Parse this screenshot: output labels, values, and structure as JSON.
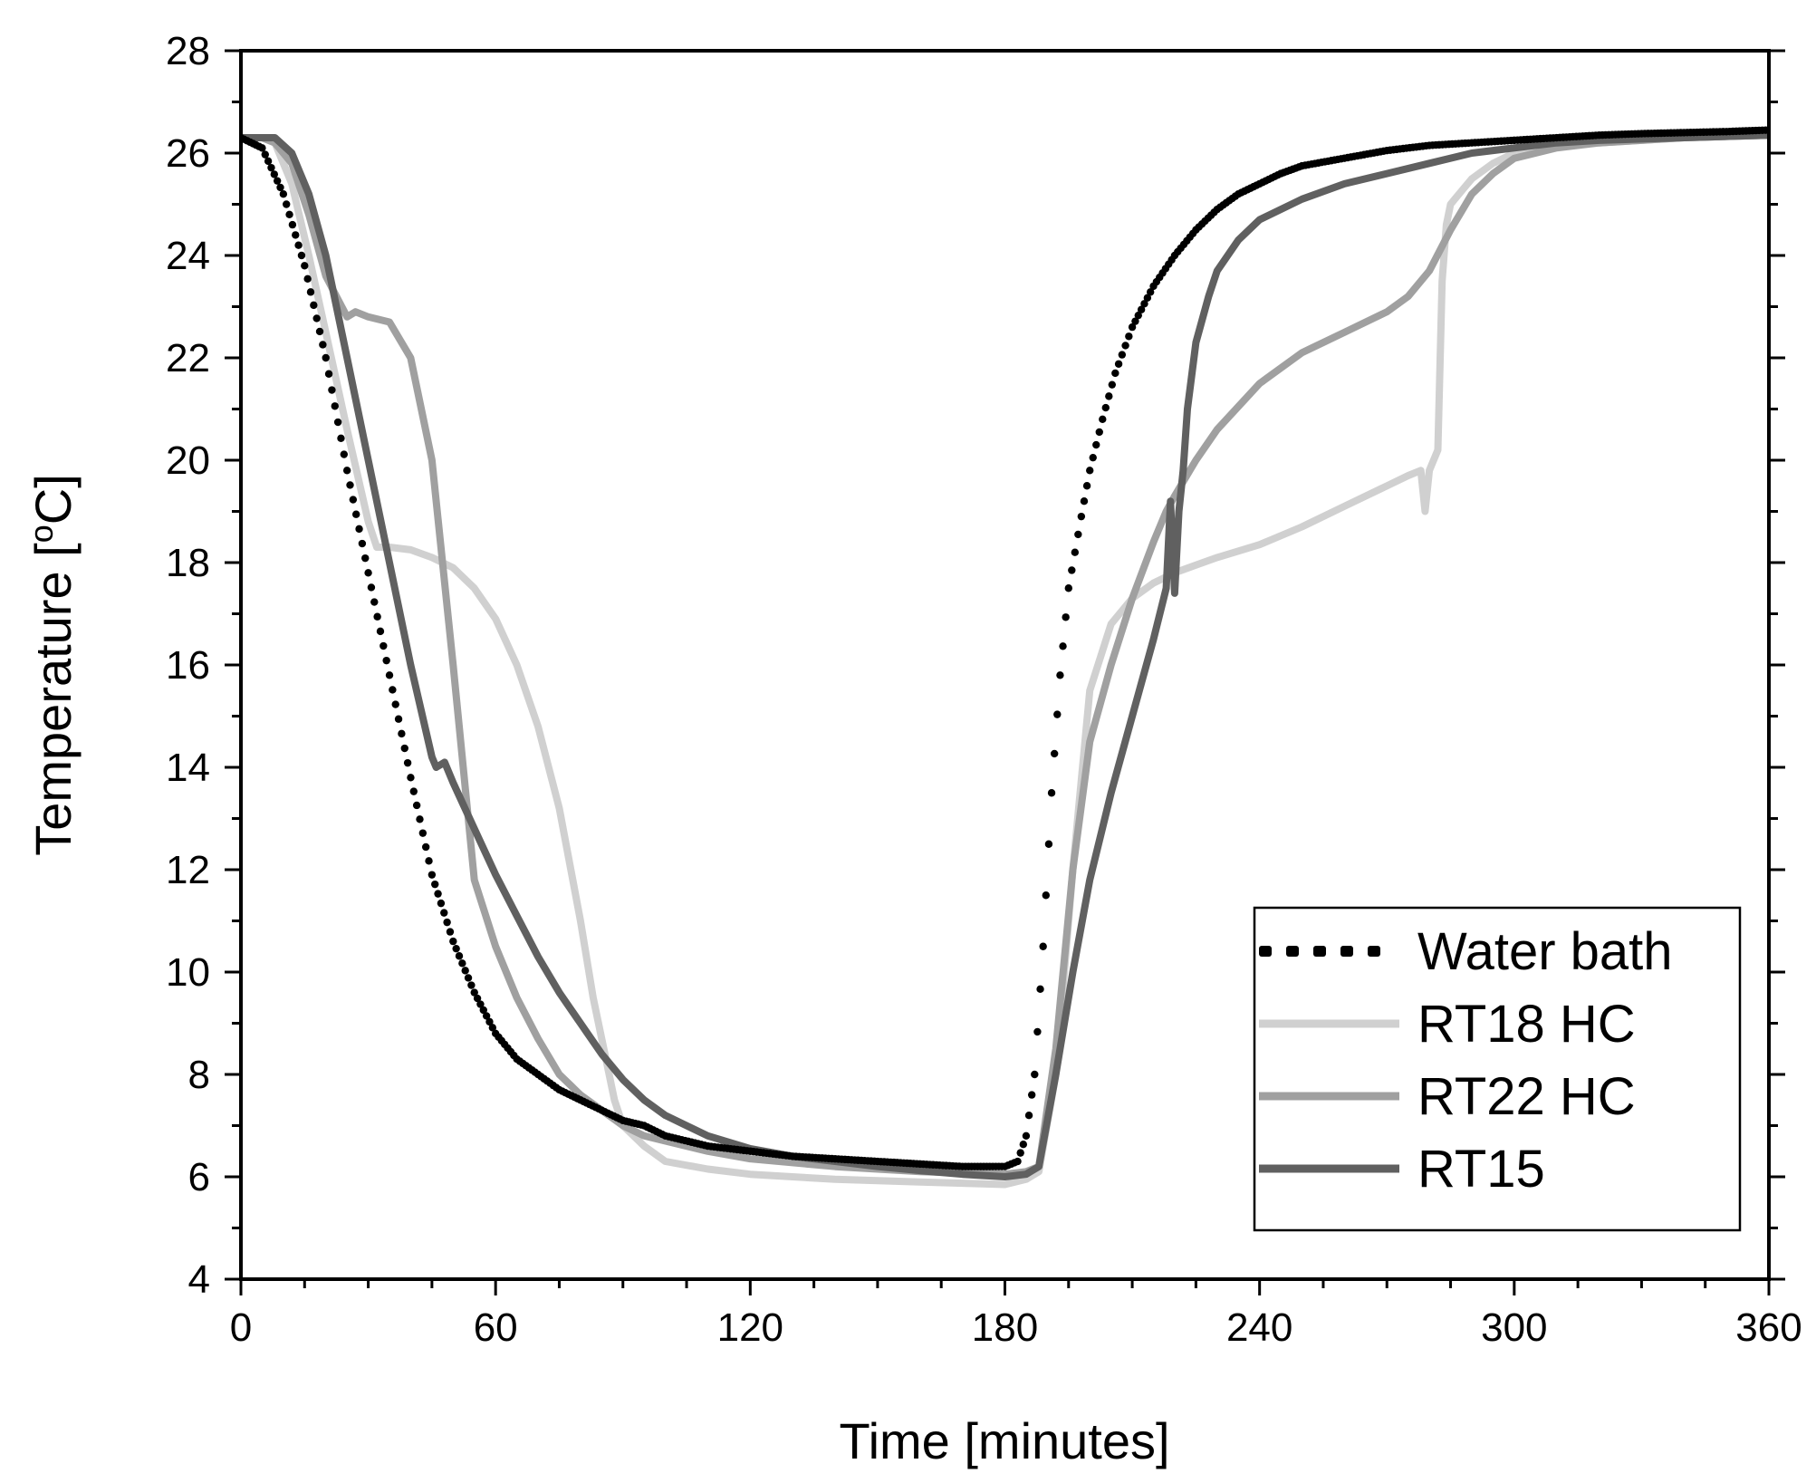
{
  "chart_data": {
    "type": "line",
    "title": "",
    "xlabel": "Time [minutes]",
    "ylabel": "Temperature [",
    "ylabel_sup": "o",
    "ylabel_suffix": "C]",
    "xlim": [
      0,
      360
    ],
    "ylim": [
      4,
      28
    ],
    "xticks": [
      0,
      60,
      120,
      180,
      240,
      300,
      360
    ],
    "yticks": [
      4,
      6,
      8,
      10,
      12,
      14,
      16,
      18,
      20,
      22,
      24,
      26,
      28
    ],
    "xtick_labels": [
      "0",
      "60",
      "120",
      "180",
      "240",
      "300",
      "360"
    ],
    "ytick_labels": [
      "4",
      "6",
      "8",
      "10",
      "12",
      "14",
      "16",
      "18",
      "20",
      "22",
      "24",
      "26",
      "28"
    ],
    "x_minor_step": 15,
    "y_minor_step": 1,
    "grid": false,
    "legend_position": "bottom-right",
    "series": [
      {
        "name": "Water bath",
        "color": "#000000",
        "style": "dotted",
        "x": [
          0,
          5,
          10,
          15,
          20,
          25,
          30,
          35,
          40,
          45,
          50,
          55,
          60,
          65,
          70,
          75,
          80,
          85,
          90,
          95,
          100,
          110,
          120,
          130,
          140,
          150,
          160,
          170,
          175,
          180,
          183,
          185,
          187,
          189,
          191,
          193,
          195,
          198,
          200,
          203,
          206,
          210,
          215,
          220,
          225,
          230,
          235,
          240,
          245,
          250,
          260,
          270,
          280,
          290,
          300,
          310,
          320,
          330,
          340,
          350,
          360
        ],
        "y": [
          26.3,
          26.1,
          25.2,
          23.8,
          22.0,
          19.8,
          17.8,
          15.8,
          13.8,
          11.9,
          10.6,
          9.6,
          8.8,
          8.3,
          8.0,
          7.7,
          7.5,
          7.3,
          7.1,
          7.0,
          6.8,
          6.6,
          6.5,
          6.4,
          6.35,
          6.3,
          6.25,
          6.2,
          6.2,
          6.2,
          6.3,
          6.8,
          8.0,
          10.5,
          13.5,
          15.8,
          17.5,
          18.9,
          19.8,
          20.8,
          21.7,
          22.6,
          23.4,
          24.0,
          24.5,
          24.9,
          25.2,
          25.4,
          25.6,
          25.75,
          25.9,
          26.05,
          26.15,
          26.2,
          26.25,
          26.3,
          26.35,
          26.38,
          26.4,
          26.42,
          26.45
        ]
      },
      {
        "name": "RT18 HC",
        "color": "#d0d0d0",
        "style": "solid",
        "x": [
          0,
          5,
          8,
          12,
          16,
          20,
          25,
          30,
          32,
          35,
          40,
          45,
          50,
          55,
          60,
          65,
          70,
          75,
          80,
          83,
          86,
          88,
          90,
          95,
          100,
          110,
          120,
          140,
          160,
          180,
          185,
          188,
          192,
          196,
          200,
          205,
          210,
          215,
          220,
          225,
          230,
          240,
          250,
          260,
          270,
          275,
          278,
          279,
          280,
          281,
          282,
          283,
          284,
          285,
          286,
          288,
          290,
          295,
          300,
          310,
          320,
          340,
          360
        ],
        "y": [
          26.3,
          26.3,
          26.2,
          25.4,
          24.0,
          22.5,
          20.6,
          18.8,
          18.3,
          18.3,
          18.25,
          18.1,
          17.9,
          17.5,
          16.9,
          16.0,
          14.8,
          13.2,
          11.0,
          9.5,
          8.3,
          7.5,
          7.0,
          6.6,
          6.3,
          6.15,
          6.05,
          5.95,
          5.9,
          5.85,
          5.95,
          6.1,
          8.0,
          12.0,
          15.5,
          16.8,
          17.3,
          17.6,
          17.8,
          17.95,
          18.1,
          18.35,
          18.7,
          19.1,
          19.5,
          19.7,
          19.8,
          19.0,
          19.8,
          20.0,
          20.2,
          23.5,
          24.6,
          25.0,
          25.1,
          25.3,
          25.5,
          25.8,
          26.0,
          26.15,
          26.2,
          26.3,
          26.35
        ]
      },
      {
        "name": "RT22 HC",
        "color": "#a0a0a0",
        "style": "solid",
        "x": [
          0,
          5,
          8,
          12,
          16,
          20,
          25,
          27,
          30,
          35,
          40,
          45,
          50,
          55,
          60,
          65,
          70,
          75,
          80,
          85,
          90,
          95,
          100,
          110,
          120,
          140,
          160,
          180,
          185,
          188,
          192,
          196,
          200,
          205,
          210,
          215,
          218,
          220,
          225,
          230,
          240,
          250,
          260,
          270,
          275,
          280,
          285,
          290,
          295,
          300,
          310,
          320,
          340,
          360
        ],
        "y": [
          26.3,
          26.3,
          26.2,
          25.8,
          24.8,
          23.6,
          22.8,
          22.9,
          22.8,
          22.7,
          22.0,
          20.0,
          16.0,
          11.8,
          10.5,
          9.5,
          8.7,
          8.0,
          7.6,
          7.3,
          7.0,
          6.8,
          6.7,
          6.5,
          6.35,
          6.2,
          6.1,
          6.05,
          6.1,
          6.2,
          8.5,
          12.0,
          14.5,
          16.0,
          17.3,
          18.4,
          19.0,
          19.3,
          20.0,
          20.6,
          21.5,
          22.1,
          22.5,
          22.9,
          23.2,
          23.7,
          24.5,
          25.2,
          25.6,
          25.9,
          26.1,
          26.2,
          26.3,
          26.35
        ]
      },
      {
        "name": "RT15",
        "color": "#606060",
        "style": "solid",
        "x": [
          0,
          5,
          8,
          12,
          16,
          20,
          25,
          30,
          35,
          40,
          45,
          46,
          48,
          50,
          55,
          60,
          65,
          70,
          75,
          80,
          85,
          90,
          95,
          100,
          110,
          120,
          130,
          140,
          150,
          160,
          170,
          180,
          185,
          188,
          192,
          196,
          200,
          205,
          210,
          215,
          218,
          219,
          220,
          221,
          222,
          223,
          225,
          228,
          230,
          235,
          240,
          250,
          260,
          270,
          280,
          290,
          300,
          310,
          320,
          340,
          360
        ],
        "y": [
          26.3,
          26.3,
          26.3,
          26.0,
          25.2,
          24.0,
          22.0,
          20.0,
          18.0,
          16.0,
          14.2,
          14.0,
          14.1,
          13.7,
          12.8,
          11.9,
          11.1,
          10.3,
          9.6,
          9.0,
          8.4,
          7.9,
          7.5,
          7.2,
          6.8,
          6.55,
          6.4,
          6.3,
          6.2,
          6.12,
          6.05,
          6.0,
          6.05,
          6.2,
          8.0,
          10.0,
          11.8,
          13.5,
          15.0,
          16.5,
          17.5,
          19.2,
          17.4,
          19.0,
          19.8,
          21.0,
          22.3,
          23.2,
          23.7,
          24.3,
          24.7,
          25.1,
          25.4,
          25.6,
          25.8,
          26.0,
          26.1,
          26.2,
          26.25,
          26.3,
          26.35
        ]
      }
    ]
  }
}
